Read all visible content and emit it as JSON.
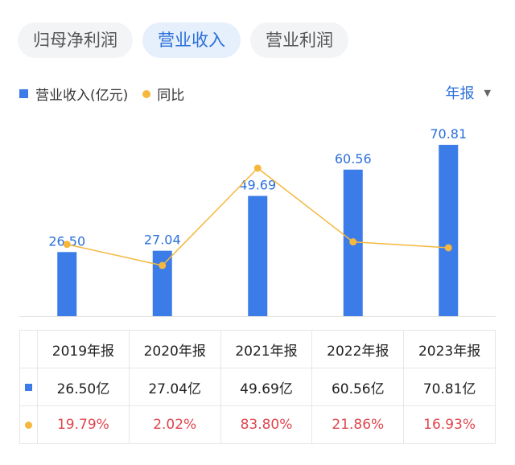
{
  "tabs": [
    {
      "label": "归母净利润",
      "active": false
    },
    {
      "label": "营业收入",
      "active": true
    },
    {
      "label": "营业利润",
      "active": false
    }
  ],
  "legend": {
    "bar_label": "营业收入(亿元)",
    "line_label": "同比"
  },
  "period_selector": {
    "value": "年报"
  },
  "chart_data": {
    "type": "bar",
    "categories": [
      "2019年报",
      "2020年报",
      "2021年报",
      "2022年报",
      "2023年报"
    ],
    "series": [
      {
        "name": "营业收入(亿元)",
        "type": "bar",
        "values": [
          26.5,
          27.04,
          49.69,
          60.56,
          70.81
        ],
        "labels": [
          "26.50",
          "27.04",
          "49.69",
          "60.56",
          "70.81"
        ],
        "color": "#3b7ce8"
      },
      {
        "name": "同比",
        "type": "line",
        "values": [
          19.79,
          2.02,
          83.8,
          21.86,
          16.93
        ],
        "color": "#f5b83d"
      }
    ],
    "grid": false
  },
  "table": {
    "headers": [
      "2019年报",
      "2020年报",
      "2021年报",
      "2022年报",
      "2023年报"
    ],
    "revenue": [
      "26.50亿",
      "27.04亿",
      "49.69亿",
      "60.56亿",
      "70.81亿"
    ],
    "yoy": [
      "19.79%",
      "2.02%",
      "83.80%",
      "21.86%",
      "16.93%"
    ]
  }
}
